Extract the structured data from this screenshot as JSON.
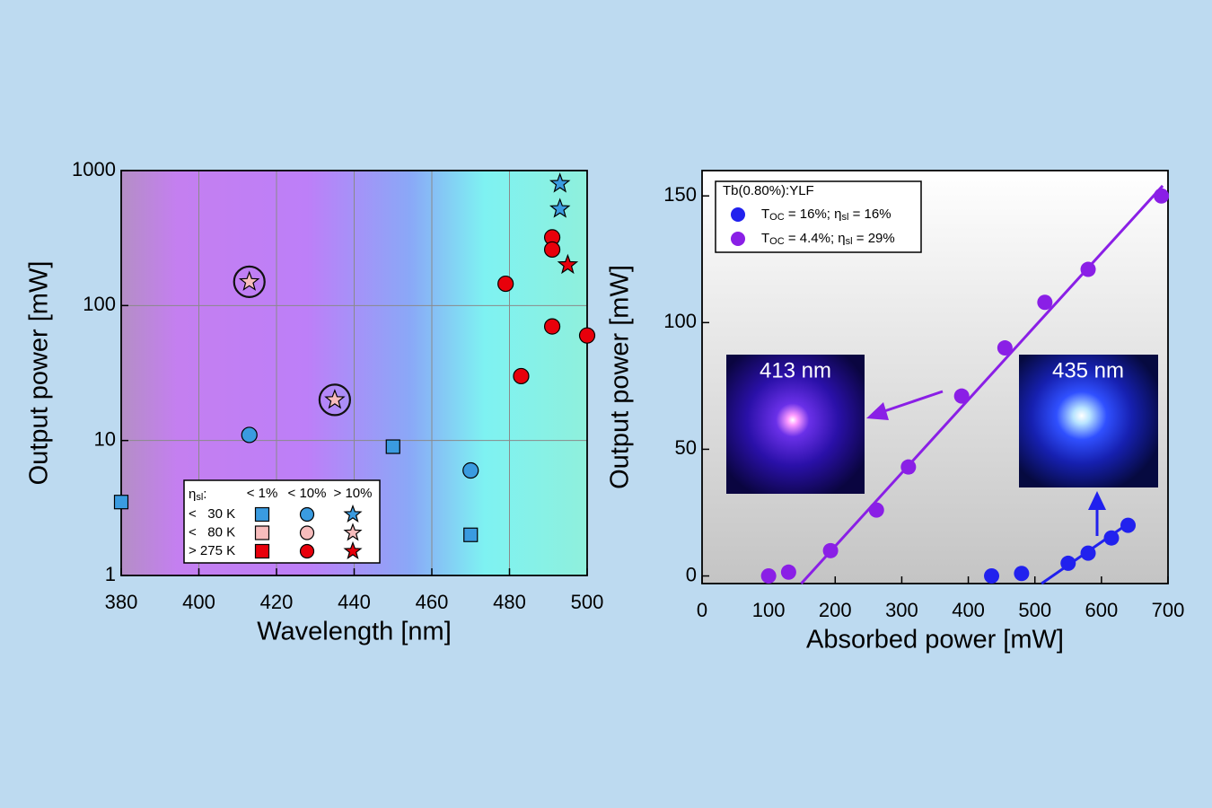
{
  "chart_data": [
    {
      "type": "scatter",
      "xlabel": "Wavelength [nm]",
      "ylabel": "Output power [mW]",
      "xlim": [
        380,
        500
      ],
      "xticks": [
        380,
        400,
        420,
        440,
        460,
        480,
        500
      ],
      "ylim": [
        1,
        1000
      ],
      "yticks": [
        1,
        10,
        100,
        1000
      ],
      "log_y": true,
      "grid": true,
      "legend": {
        "title": [
          "η",
          "sl",
          ":"
        ],
        "columns": [
          "< 1%",
          "< 10%",
          "> 10%"
        ],
        "rows": [
          "<   30 K",
          "<   80 K",
          "> 275 K"
        ],
        "colors": [
          "#3a9be0",
          "#f7bcbc",
          "#e8000b"
        ],
        "markers": [
          "square",
          "circle",
          "star"
        ]
      },
      "series": [
        {
          "row": 0,
          "col": 0,
          "x": [
            380,
            450,
            470
          ],
          "values": [
            3.5,
            9,
            2
          ]
        },
        {
          "row": 0,
          "col": 1,
          "x": [
            413,
            470
          ],
          "values": [
            11,
            6
          ]
        },
        {
          "row": 0,
          "col": 2,
          "x": [
            493,
            493
          ],
          "values": [
            800,
            520
          ]
        },
        {
          "row": 1,
          "col": 2,
          "ring": true,
          "x": [
            413,
            435
          ],
          "values": [
            150,
            20
          ]
        },
        {
          "row": 2,
          "col": 1,
          "x": [
            479,
            491,
            491,
            491,
            500,
            483
          ],
          "values": [
            145,
            320,
            260,
            70,
            60,
            30
          ]
        },
        {
          "row": 2,
          "col": 2,
          "x": [
            495
          ],
          "values": [
            200
          ]
        }
      ]
    },
    {
      "type": "scatter",
      "xlabel": "Absorbed power [mW]",
      "ylabel": "Output power [mW]",
      "xlim": [
        0,
        700
      ],
      "xticks": [
        0,
        100,
        200,
        300,
        400,
        500,
        600,
        700
      ],
      "ylim": [
        -3,
        160
      ],
      "yticks": [
        0,
        50,
        100,
        150
      ],
      "grid": false,
      "legend_title": "Tb(0.80%):YLF",
      "series": [
        {
          "name": [
            "T",
            "OC",
            " = 16%; η",
            "sl",
            " = 16%"
          ],
          "color": "#2121ee",
          "x": [
            435,
            480,
            550,
            580,
            615,
            640
          ],
          "values": [
            0,
            1,
            5,
            9,
            15,
            20
          ],
          "fit": {
            "x": [
              510,
              642
            ],
            "values": [
              -3,
              21
            ]
          }
        },
        {
          "name": [
            "T",
            "OC",
            " = 4.4%; η",
            "sl",
            " = 29%"
          ],
          "color": "#8a1fe6",
          "x": [
            100,
            130,
            193,
            262,
            310,
            390,
            455,
            515,
            580,
            690
          ],
          "values": [
            0,
            1.5,
            10,
            26,
            43,
            71,
            90,
            108,
            121,
            150
          ],
          "fit": {
            "x": [
              149,
              692
            ],
            "values": [
              -3,
              154
            ]
          }
        }
      ],
      "insets": [
        {
          "label": "413 nm"
        },
        {
          "label": "435 nm"
        }
      ]
    }
  ]
}
